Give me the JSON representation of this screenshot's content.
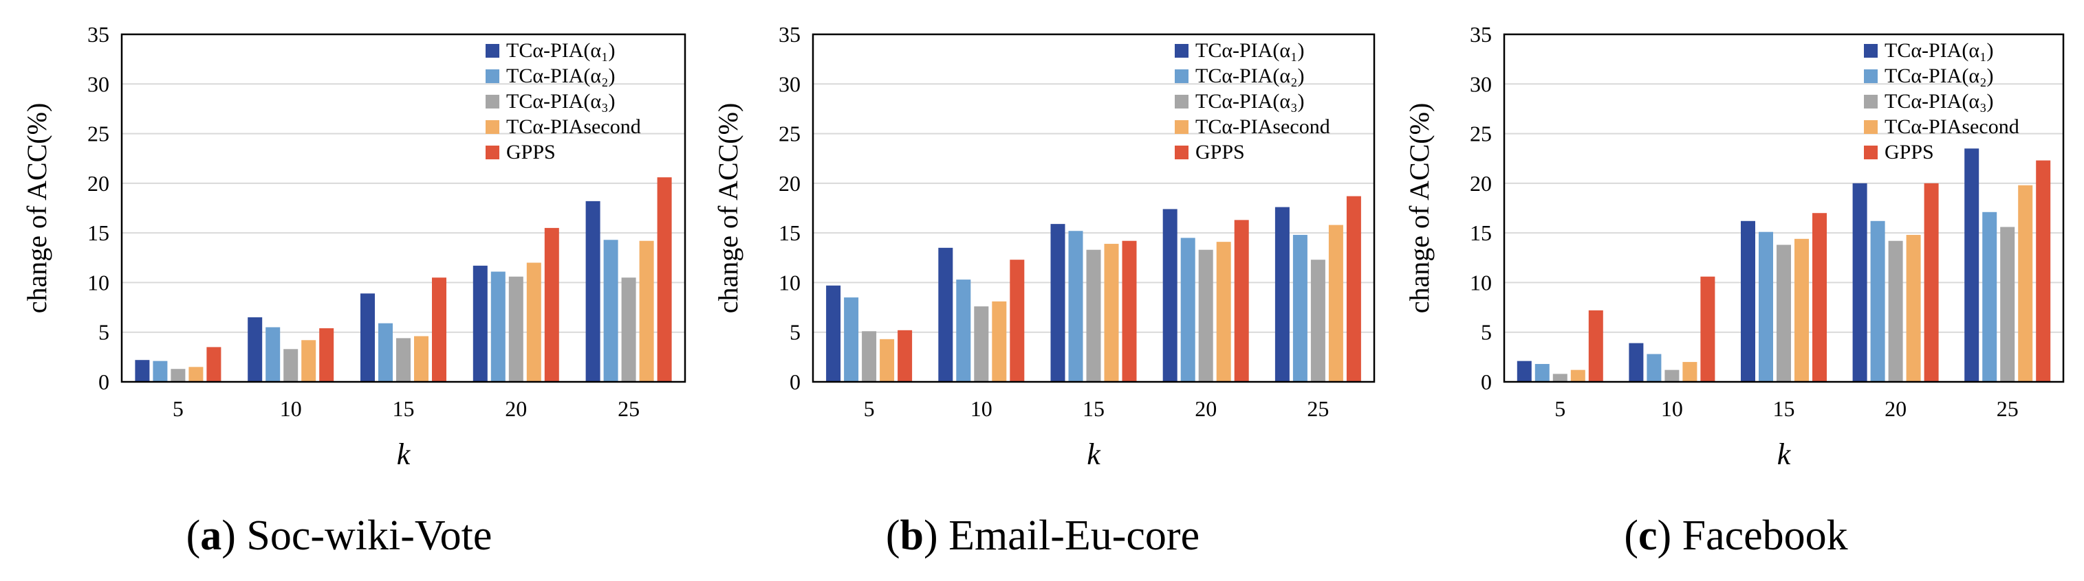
{
  "colors": {
    "series": [
      "#2F4B9C",
      "#6A9FD0",
      "#A6A6A6",
      "#F2AE65",
      "#E0543A"
    ],
    "grid": "#D9D9D9",
    "axis": "#000000"
  },
  "chart_data": [
    {
      "type": "bar",
      "panel_letter": "a",
      "caption": "Soc-wiki-Vote",
      "xlabel": "k",
      "ylabel": "change of ACC(%)",
      "ylim": [
        0,
        35
      ],
      "yticks": [
        "0",
        "5",
        "10",
        "15",
        "20",
        "25",
        "30",
        "35"
      ],
      "categories": [
        "5",
        "10",
        "15",
        "20",
        "25"
      ],
      "grid": true,
      "legend_position": "top-right",
      "series": [
        {
          "name": "TCα-PIA(α₁)",
          "values": [
            2.2,
            6.5,
            8.9,
            11.7,
            18.2
          ]
        },
        {
          "name": "TCα-PIA(α₂)",
          "values": [
            2.1,
            5.5,
            5.9,
            11.1,
            14.3
          ]
        },
        {
          "name": "TCα-PIA(α₃)",
          "values": [
            1.3,
            3.3,
            4.4,
            10.6,
            10.5
          ]
        },
        {
          "name": "TCα-PIAsecond",
          "values": [
            1.5,
            4.2,
            4.6,
            12.0,
            14.2
          ]
        },
        {
          "name": "GPPS",
          "values": [
            3.5,
            5.4,
            10.5,
            15.5,
            20.6
          ]
        }
      ]
    },
    {
      "type": "bar",
      "panel_letter": "b",
      "caption": "Email-Eu-core",
      "xlabel": "k",
      "ylabel": "change of ACC(%)",
      "ylim": [
        0,
        35
      ],
      "yticks": [
        "0",
        "5",
        "10",
        "15",
        "20",
        "25",
        "30",
        "35"
      ],
      "categories": [
        "5",
        "10",
        "15",
        "20",
        "25"
      ],
      "grid": true,
      "legend_position": "top-right",
      "series": [
        {
          "name": "TCα-PIA(α₁)",
          "values": [
            9.7,
            13.5,
            15.9,
            17.4,
            17.6
          ]
        },
        {
          "name": "TCα-PIA(α₂)",
          "values": [
            8.5,
            10.3,
            15.2,
            14.5,
            14.8
          ]
        },
        {
          "name": "TCα-PIA(α₃)",
          "values": [
            5.1,
            7.6,
            13.3,
            13.3,
            12.3
          ]
        },
        {
          "name": "TCα-PIAsecond",
          "values": [
            4.3,
            8.1,
            13.9,
            14.1,
            15.8
          ]
        },
        {
          "name": "GPPS",
          "values": [
            5.2,
            12.3,
            14.2,
            16.3,
            18.7
          ]
        }
      ]
    },
    {
      "type": "bar",
      "panel_letter": "c",
      "caption": "Facebook",
      "xlabel": "k",
      "ylabel": "change of ACC(%)",
      "ylim": [
        0,
        35
      ],
      "yticks": [
        "0",
        "5",
        "10",
        "15",
        "20",
        "25",
        "30",
        "35"
      ],
      "categories": [
        "5",
        "10",
        "15",
        "20",
        "25"
      ],
      "grid": true,
      "legend_position": "top-right",
      "series": [
        {
          "name": "TCα-PIA(α₁)",
          "values": [
            2.1,
            3.9,
            16.2,
            20.0,
            23.5
          ]
        },
        {
          "name": "TCα-PIA(α₂)",
          "values": [
            1.8,
            2.8,
            15.1,
            16.2,
            17.1
          ]
        },
        {
          "name": "TCα-PIA(α₃)",
          "values": [
            0.8,
            1.2,
            13.8,
            14.2,
            15.6
          ]
        },
        {
          "name": "TCα-PIAsecond",
          "values": [
            1.2,
            2.0,
            14.4,
            14.8,
            19.8
          ]
        },
        {
          "name": "GPPS",
          "values": [
            7.2,
            10.6,
            17.0,
            20.0,
            22.3
          ]
        }
      ]
    }
  ]
}
